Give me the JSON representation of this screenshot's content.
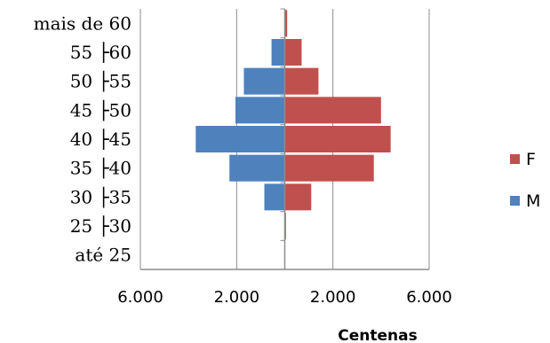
{
  "chart_data": {
    "type": "bar",
    "orientation": "horizontal",
    "layout": "population-pyramid",
    "categories": [
      "mais de 60",
      "55 ├60",
      "50 ├55",
      "45 ├50",
      "40 ├45",
      "35 ├40",
      "30 ├35",
      "25 ├30",
      "até 25"
    ],
    "series": [
      {
        "name": "F",
        "side": "right",
        "color": "#c0504d",
        "values": [
          0.1,
          0.7,
          1.4,
          4.0,
          4.4,
          3.7,
          1.1,
          0.05,
          0
        ]
      },
      {
        "name": "M",
        "side": "left",
        "color": "#4f81bd",
        "values": [
          0,
          0.55,
          1.7,
          2.05,
          3.7,
          2.3,
          0.85,
          0,
          0
        ]
      }
    ],
    "xlim": [
      -6,
      6
    ],
    "xticks": [
      -6,
      -2,
      2,
      6
    ],
    "xtick_labels": [
      "6.000",
      "2.000",
      "2.000",
      "6.000"
    ],
    "xlabel": "Centenas",
    "grid": true,
    "legend": {
      "position": "right",
      "entries": [
        "F",
        "M"
      ]
    }
  }
}
